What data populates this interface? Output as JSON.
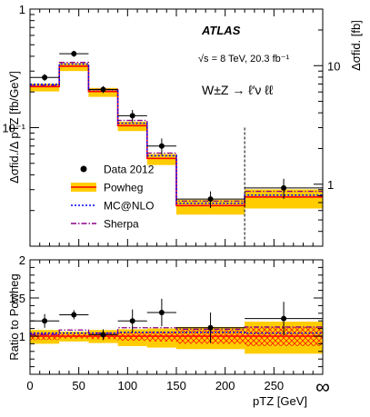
{
  "chart_data": [
    {
      "type": "line",
      "panel": "main",
      "experiment": "ATLAS",
      "energy_text": "√s = 8 TeV, 20.3 fb⁻¹",
      "process_text": "W±Z → ℓ′ν ℓℓ",
      "ylabel": "Δσfid./Δ pTZ [fb/GeV]",
      "ylabel_right": "Δσfid. [fb]",
      "y_scale": "log",
      "ylim": [
        0.01,
        1
      ],
      "y_ticks": [
        {
          "value": 1,
          "label": "1"
        },
        {
          "value": 0.1,
          "label": "10⁻¹"
        }
      ],
      "right_y_ticks": [
        {
          "value": 10,
          "label": "10"
        },
        {
          "value": 1,
          "label": "1"
        }
      ],
      "right_y_scale_factor": 30,
      "x_bins": [
        [
          0,
          30
        ],
        [
          30,
          60
        ],
        [
          60,
          90
        ],
        [
          90,
          120
        ],
        [
          120,
          150
        ],
        [
          150,
          220
        ],
        [
          220,
          300
        ]
      ],
      "overflow_bin_marker": 220,
      "legend": [
        {
          "name": "Data 2012",
          "style": "marker"
        },
        {
          "name": "Powheg",
          "style": "band"
        },
        {
          "name": "MC@NLO",
          "style": "dotted"
        },
        {
          "name": "Sherpa",
          "style": "dashdot"
        }
      ],
      "legend_position": "bottom-left",
      "series": [
        {
          "name": "Data 2012",
          "x": [
            15,
            45,
            75,
            105,
            135,
            185,
            260
          ],
          "values": [
            0.265,
            0.42,
            0.21,
            0.126,
            0.07,
            0.025,
            0.031
          ],
          "y_err": [
            0.018,
            0.025,
            0.014,
            0.015,
            0.011,
            0.004,
            0.006
          ],
          "x_err": [
            15,
            15,
            15,
            15,
            15,
            35,
            40
          ]
        },
        {
          "name": "Powheg",
          "values": [
            0.222,
            0.33,
            0.202,
            0.104,
            0.055,
            0.022,
            0.026
          ]
        },
        {
          "name": "MC@NLO",
          "values": [
            0.232,
            0.344,
            0.209,
            0.109,
            0.058,
            0.023,
            0.027
          ]
        },
        {
          "name": "Sherpa",
          "values": [
            0.227,
            0.355,
            0.21,
            0.115,
            0.061,
            0.024,
            0.029
          ]
        }
      ],
      "powheg_band_relative": [
        [
          0.91,
          1.06
        ],
        [
          0.91,
          1.06
        ],
        [
          0.9,
          1.07
        ],
        [
          0.9,
          1.08
        ],
        [
          0.88,
          1.09
        ],
        [
          0.84,
          1.12
        ],
        [
          0.8,
          1.16
        ]
      ]
    },
    {
      "type": "line",
      "panel": "ratio",
      "ylabel": "Ratio to Powheg",
      "xlabel": "pTZ [GeV]",
      "ylim": [
        0.5,
        2.0
      ],
      "y_ticks": [
        {
          "value": 1,
          "label": "1"
        },
        {
          "value": 1.5,
          "label": "1.5"
        },
        {
          "value": 2,
          "label": "2"
        }
      ],
      "x_ticks": [
        {
          "value": 0,
          "label": "0"
        },
        {
          "value": 50,
          "label": "50"
        },
        {
          "value": 100,
          "label": "100"
        },
        {
          "value": 150,
          "label": "150"
        },
        {
          "value": 200,
          "label": "200"
        },
        {
          "value": 250,
          "label": "250"
        },
        {
          "value": 300,
          "label": "∞"
        }
      ],
      "x_bins": [
        [
          0,
          30
        ],
        [
          30,
          60
        ],
        [
          60,
          90
        ],
        [
          90,
          120
        ],
        [
          120,
          150
        ],
        [
          150,
          220
        ],
        [
          220,
          300
        ]
      ],
      "series": [
        {
          "name": "Data 2012",
          "x": [
            15,
            45,
            75,
            105,
            135,
            185,
            260
          ],
          "values": [
            1.2,
            1.28,
            1.02,
            1.2,
            1.31,
            1.11,
            1.23
          ],
          "y_err": [
            0.09,
            0.06,
            0.07,
            0.15,
            0.18,
            0.2,
            0.22
          ],
          "x_err": [
            15,
            15,
            15,
            15,
            15,
            35,
            40
          ]
        },
        {
          "name": "MC@NLO",
          "values": [
            1.04,
            1.04,
            1.04,
            1.05,
            1.05,
            1.05,
            1.04
          ]
        },
        {
          "name": "Sherpa",
          "values": [
            1.02,
            1.08,
            1.04,
            1.11,
            1.11,
            1.09,
            1.12
          ]
        }
      ],
      "powheg_band_total": [
        [
          0.9,
          1.08
        ],
        [
          0.93,
          1.06
        ],
        [
          0.91,
          1.08
        ],
        [
          0.87,
          1.09
        ],
        [
          0.85,
          1.1
        ],
        [
          0.83,
          1.12
        ],
        [
          0.77,
          1.19
        ]
      ],
      "powheg_band_scale": [
        [
          0.95,
          1.04
        ],
        [
          0.97,
          1.03
        ],
        [
          0.96,
          1.04
        ],
        [
          0.94,
          1.05
        ],
        [
          0.93,
          1.06
        ],
        [
          0.9,
          1.08
        ],
        [
          0.87,
          1.12
        ]
      ]
    }
  ],
  "colors": {
    "powheg_line": "#ff0000",
    "powheg_band": "#ffcc00",
    "mcnlo": "#0000ff",
    "sherpa": "#8b008b",
    "data": "#000000"
  }
}
